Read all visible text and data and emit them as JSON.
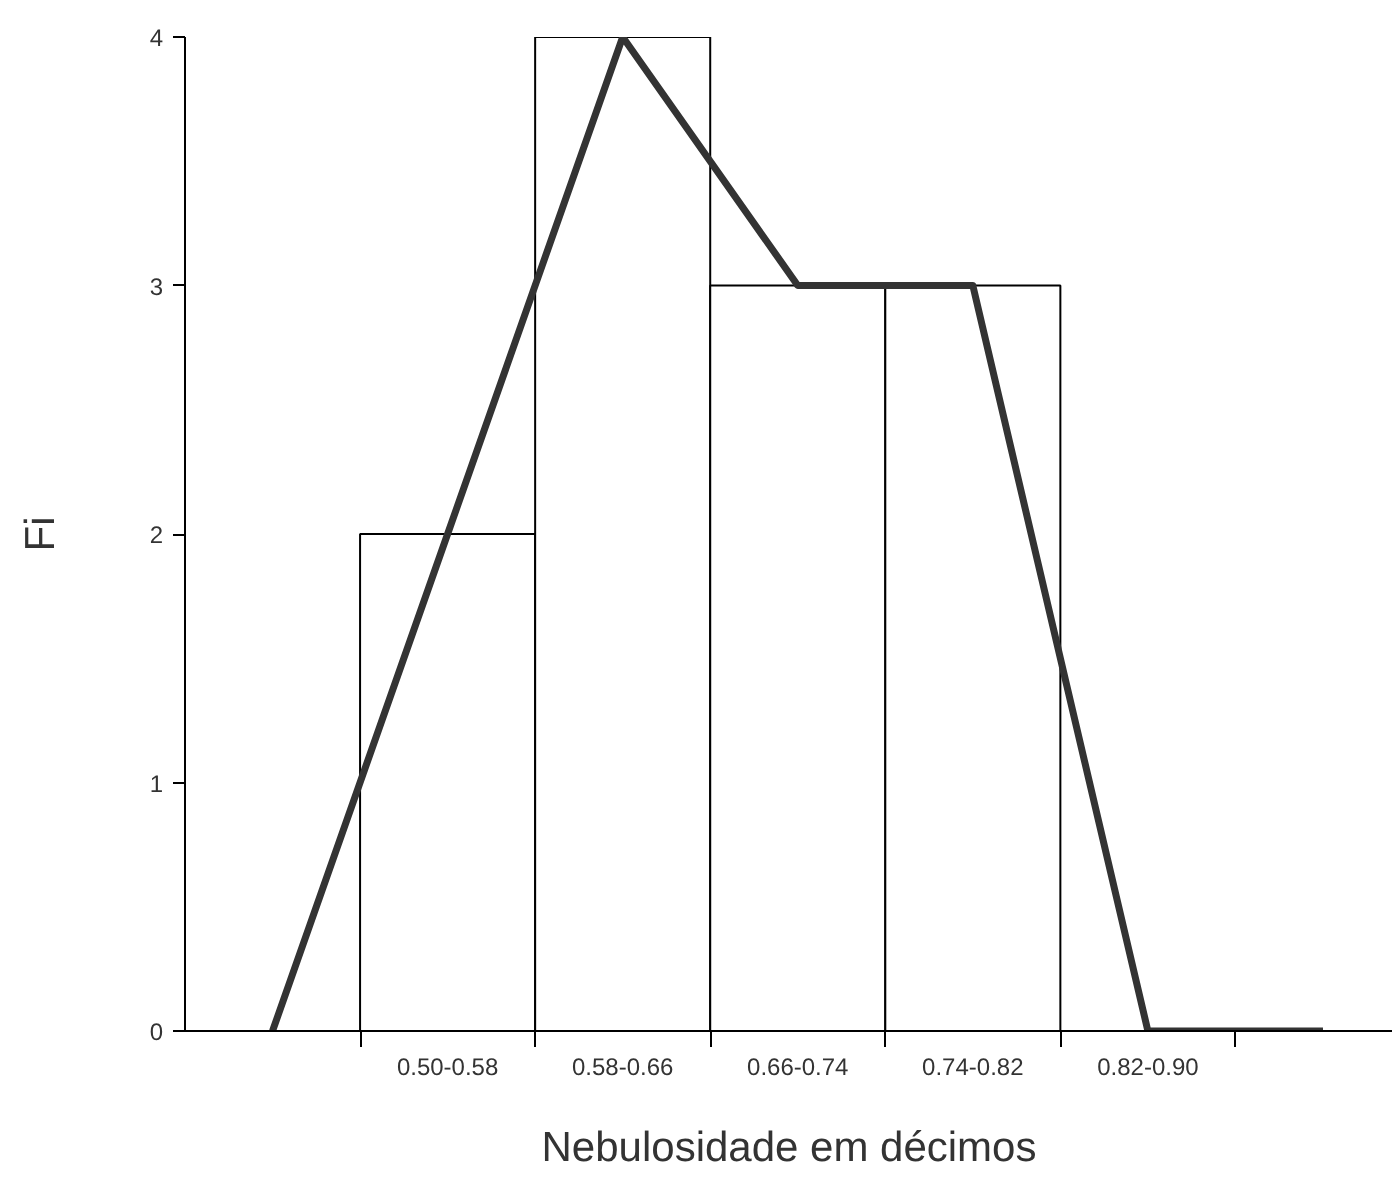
{
  "chart_data": {
    "type": "bar",
    "xlabel": "Nebulosidade em décimos",
    "ylabel": "Fi",
    "categories": [
      null,
      "0.50-0.58",
      "0.58-0.66",
      "0.66-0.74",
      "0.74-0.82",
      "0.82-0.90",
      null
    ],
    "series": [
      {
        "color": "#ffffff",
        "values": [
          null,
          2,
          4,
          3,
          3,
          null,
          null
        ]
      },
      {
        "type": "line",
        "color": "#333333",
        "values": [
          0,
          2,
          4,
          3,
          3,
          0,
          0
        ]
      }
    ],
    "ylim": [
      0,
      4
    ],
    "yticks": [
      0,
      1,
      2,
      3,
      4
    ],
    "grid": false
  }
}
